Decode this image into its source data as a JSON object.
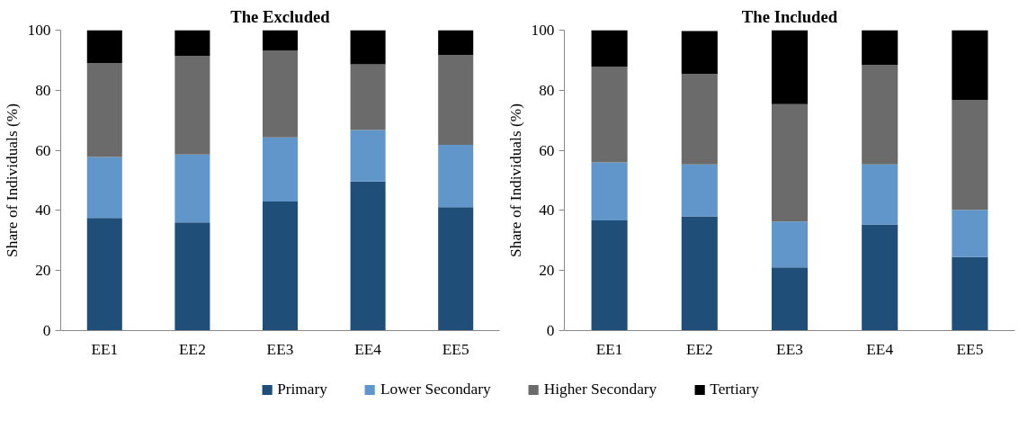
{
  "chart_data": [
    {
      "type": "bar",
      "stacked": true,
      "title": "The Excluded",
      "ylabel": "Share of Individuals (%)",
      "categories": [
        "EE1",
        "EE2",
        "EE3",
        "EE4",
        "EE5"
      ],
      "ylim": [
        0,
        100
      ],
      "yticks": [
        0,
        20,
        40,
        60,
        80,
        100
      ],
      "grid": false,
      "legend": "bottom",
      "series": [
        {
          "name": "Primary",
          "color": "#1f4e79",
          "values": [
            37.5,
            36,
            43,
            49.6,
            41.1
          ]
        },
        {
          "name": "Lower Secondary",
          "color": "#6096c9",
          "values": [
            20.3,
            22.6,
            21.3,
            17.2,
            20.7
          ]
        },
        {
          "name": "Higher Secondary",
          "color": "#6b6b6b",
          "values": [
            31.2,
            32.9,
            28.9,
            21.8,
            30
          ]
        },
        {
          "name": "Tertiary",
          "color": "#000000",
          "values": [
            11,
            8.5,
            6.8,
            11.4,
            8.2
          ]
        }
      ]
    },
    {
      "type": "bar",
      "stacked": true,
      "title": "The Included",
      "ylabel": "Share of Individuals (%)",
      "categories": [
        "EE1",
        "EE2",
        "EE3",
        "EE4",
        "EE5"
      ],
      "ylim": [
        0,
        100
      ],
      "yticks": [
        0,
        20,
        40,
        60,
        80,
        100
      ],
      "grid": false,
      "series": [
        {
          "color": "#1f4e79",
          "values": [
            36.7,
            38,
            21,
            35.3,
            24.5
          ]
        },
        {
          "color": "#6096c9",
          "values": [
            19.3,
            17.3,
            15.3,
            20,
            15.7
          ]
        },
        {
          "color": "#6b6b6b",
          "values": [
            31.9,
            30.2,
            39.1,
            33.1,
            36.6
          ]
        },
        {
          "color": "#000000",
          "values": [
            12.1,
            14.2,
            24.6,
            11.6,
            23.2
          ]
        }
      ]
    }
  ]
}
